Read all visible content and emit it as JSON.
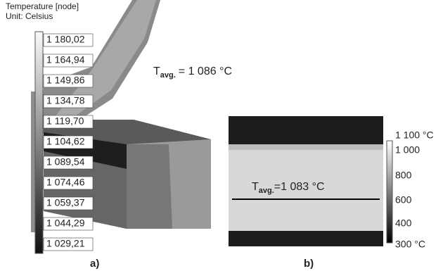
{
  "panel_a": {
    "legend_title": "Temperature [node]",
    "legend_unit": "Unit: Celsius",
    "legend_labels": [
      "1 180,02",
      "1 164,94",
      "1 149,86",
      "1 134,78",
      "1 119,70",
      "1 104,62",
      "1 089,54",
      "1 074,46",
      "1 059,37",
      "1 044,29",
      "1 029,21"
    ],
    "avg_symbol": "T",
    "avg_subscript": "avg.",
    "avg_value": "= 1 086 °C",
    "caption": "a)"
  },
  "panel_b": {
    "colorbar_labels": [
      "1 100 °C",
      "1 000",
      "800",
      "600",
      "400",
      "300 °C"
    ],
    "avg_symbol": "T",
    "avg_subscript": "avg.",
    "avg_value": "=1 083 °C",
    "caption": "b)"
  }
}
